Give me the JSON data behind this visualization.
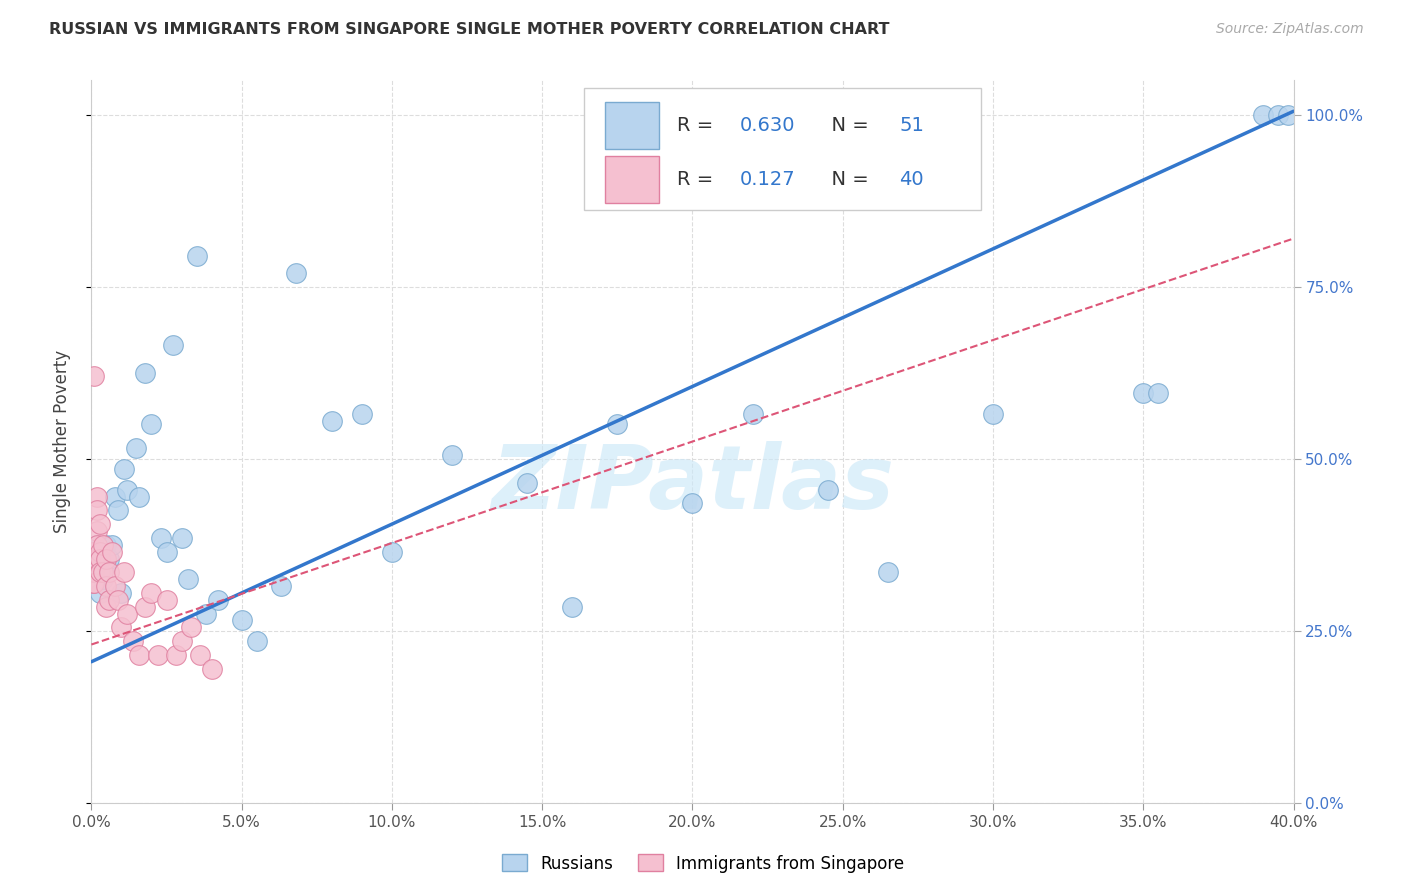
{
  "title": "RUSSIAN VS IMMIGRANTS FROM SINGAPORE SINGLE MOTHER POVERTY CORRELATION CHART",
  "source": "Source: ZipAtlas.com",
  "ylabel_label": "Single Mother Poverty",
  "xlim": [
    0.0,
    0.4
  ],
  "ylim": [
    0.0,
    1.05
  ],
  "blue_R": 0.63,
  "blue_N": 51,
  "pink_R": 0.127,
  "pink_N": 40,
  "blue_color": "#b8d4ee",
  "blue_edge_color": "#7aaad0",
  "pink_color": "#f5c0d0",
  "pink_edge_color": "#e080a0",
  "blue_line_color": "#3377cc",
  "pink_line_color": "#dd5577",
  "legend_label_blue": "Russians",
  "legend_label_pink": "Immigrants from Singapore",
  "watermark": "ZIPatlas",
  "blue_line_x0": 0.0,
  "blue_line_y0": 0.205,
  "blue_line_x1": 0.4,
  "blue_line_y1": 1.005,
  "pink_line_x0": 0.0,
  "pink_line_y0": 0.23,
  "pink_line_x1": 0.4,
  "pink_line_y1": 0.82,
  "blue_x": [
    0.001,
    0.0015,
    0.001,
    0.002,
    0.002,
    0.003,
    0.003,
    0.004,
    0.004,
    0.005,
    0.005,
    0.006,
    0.007,
    0.008,
    0.009,
    0.01,
    0.011,
    0.012,
    0.015,
    0.016,
    0.018,
    0.02,
    0.023,
    0.025,
    0.027,
    0.03,
    0.032,
    0.035,
    0.038,
    0.042,
    0.05,
    0.055,
    0.063,
    0.068,
    0.08,
    0.09,
    0.1,
    0.12,
    0.145,
    0.16,
    0.175,
    0.2,
    0.22,
    0.245,
    0.265,
    0.3,
    0.35,
    0.355,
    0.39,
    0.395,
    0.398
  ],
  "blue_y": [
    0.335,
    0.365,
    0.36,
    0.345,
    0.375,
    0.305,
    0.345,
    0.365,
    0.325,
    0.345,
    0.375,
    0.355,
    0.375,
    0.445,
    0.425,
    0.305,
    0.485,
    0.455,
    0.515,
    0.445,
    0.625,
    0.55,
    0.385,
    0.365,
    0.665,
    0.385,
    0.325,
    0.795,
    0.275,
    0.295,
    0.265,
    0.235,
    0.315,
    0.77,
    0.555,
    0.565,
    0.365,
    0.505,
    0.465,
    0.285,
    0.55,
    0.435,
    0.565,
    0.455,
    0.335,
    0.565,
    0.595,
    0.595,
    1.0,
    1.0,
    1.0
  ],
  "pink_x": [
    0.0005,
    0.0005,
    0.0005,
    0.001,
    0.001,
    0.001,
    0.001,
    0.002,
    0.002,
    0.002,
    0.002,
    0.002,
    0.003,
    0.003,
    0.003,
    0.003,
    0.004,
    0.004,
    0.005,
    0.005,
    0.005,
    0.006,
    0.006,
    0.007,
    0.008,
    0.009,
    0.01,
    0.011,
    0.012,
    0.014,
    0.016,
    0.018,
    0.02,
    0.022,
    0.025,
    0.028,
    0.03,
    0.033,
    0.036,
    0.04
  ],
  "pink_y": [
    0.335,
    0.365,
    0.32,
    0.62,
    0.355,
    0.335,
    0.32,
    0.445,
    0.425,
    0.395,
    0.375,
    0.355,
    0.405,
    0.365,
    0.355,
    0.335,
    0.375,
    0.335,
    0.355,
    0.315,
    0.285,
    0.335,
    0.295,
    0.365,
    0.315,
    0.295,
    0.255,
    0.335,
    0.275,
    0.235,
    0.215,
    0.285,
    0.305,
    0.215,
    0.295,
    0.215,
    0.235,
    0.255,
    0.215,
    0.195
  ]
}
